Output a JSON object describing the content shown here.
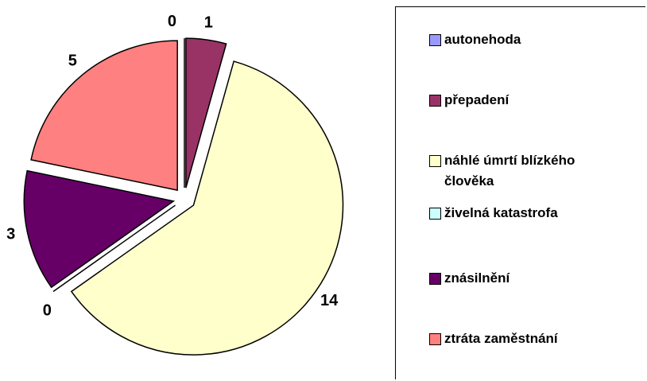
{
  "chart_data": {
    "type": "pie",
    "categories": [
      "autonehoda",
      "přepadení",
      "náhlé úmrtí blízkého člověka",
      "živelná katastrofa",
      "znásilnění",
      "ztráta zaměstnání"
    ],
    "values": [
      0,
      1,
      14,
      0,
      3,
      5
    ],
    "colors": [
      "#9999ff",
      "#993366",
      "#ffffcc",
      "#ccffff",
      "#660066",
      "#ff8080"
    ],
    "exploded": true,
    "legend": "right"
  }
}
